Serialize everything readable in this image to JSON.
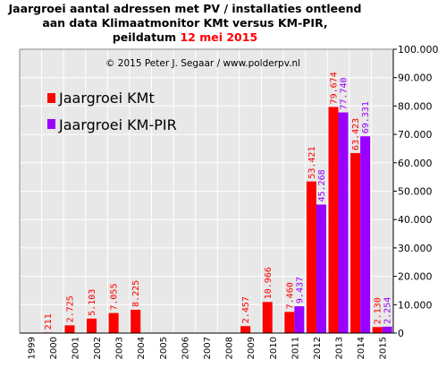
{
  "title": {
    "line1": "Jaargroei aantal adressen met PV / installaties ontleend",
    "line2": "aan data Klimaatmonitor  KMt versus KM-PIR,",
    "line3_prefix": "peildatum ",
    "line3_date": "12 mei 2015"
  },
  "copyright": "© 2015 Peter J. Segaar / www.polderpv.nl",
  "colors": {
    "kmt": "#ff0000",
    "kmpir": "#9900ff",
    "plot_bg": "#e8e8e8",
    "grid": "#ffffff",
    "axis": "#000000"
  },
  "chart_data": {
    "type": "bar",
    "categories": [
      "1999",
      "2000",
      "2001",
      "2002",
      "2003",
      "2004",
      "2005",
      "2006",
      "2007",
      "2008",
      "2009",
      "2010",
      "2011",
      "2012",
      "2013",
      "2014",
      "2015"
    ],
    "series": [
      {
        "name": "Jaargroei KMt",
        "values": [
          null,
          211,
          2725,
          5103,
          7055,
          8225,
          null,
          null,
          null,
          null,
          2457,
          10966,
          7460,
          53421,
          79674,
          63423,
          2130
        ],
        "labels": [
          "",
          "211",
          "2.725",
          "5.103",
          "7.055",
          "8.225",
          "",
          "",
          "",
          "",
          "2.457",
          "10.966",
          "7.460",
          "53.421",
          "79.674",
          "63.423",
          "2.130"
        ]
      },
      {
        "name": "Jaargroei KM-PIR",
        "values": [
          null,
          null,
          null,
          null,
          null,
          null,
          null,
          null,
          null,
          null,
          null,
          null,
          9437,
          45268,
          77740,
          69331,
          2254
        ],
        "labels": [
          "",
          "",
          "",
          "",
          "",
          "",
          "",
          "",
          "",
          "",
          "",
          "",
          "9.437",
          "45.268",
          "77.740",
          "69.331",
          "2.254"
        ]
      }
    ],
    "ylim": [
      0,
      100000
    ],
    "yticks": [
      0,
      10000,
      20000,
      30000,
      40000,
      50000,
      60000,
      70000,
      80000,
      90000,
      100000
    ],
    "ytick_labels": [
      "0",
      "10.000",
      "20.000",
      "30.000",
      "40.000",
      "50.000",
      "60.000",
      "70.000",
      "80.000",
      "90.000",
      "100.000"
    ],
    "grid": true,
    "legend_position": "top-left",
    "y_axis_side": "right"
  }
}
